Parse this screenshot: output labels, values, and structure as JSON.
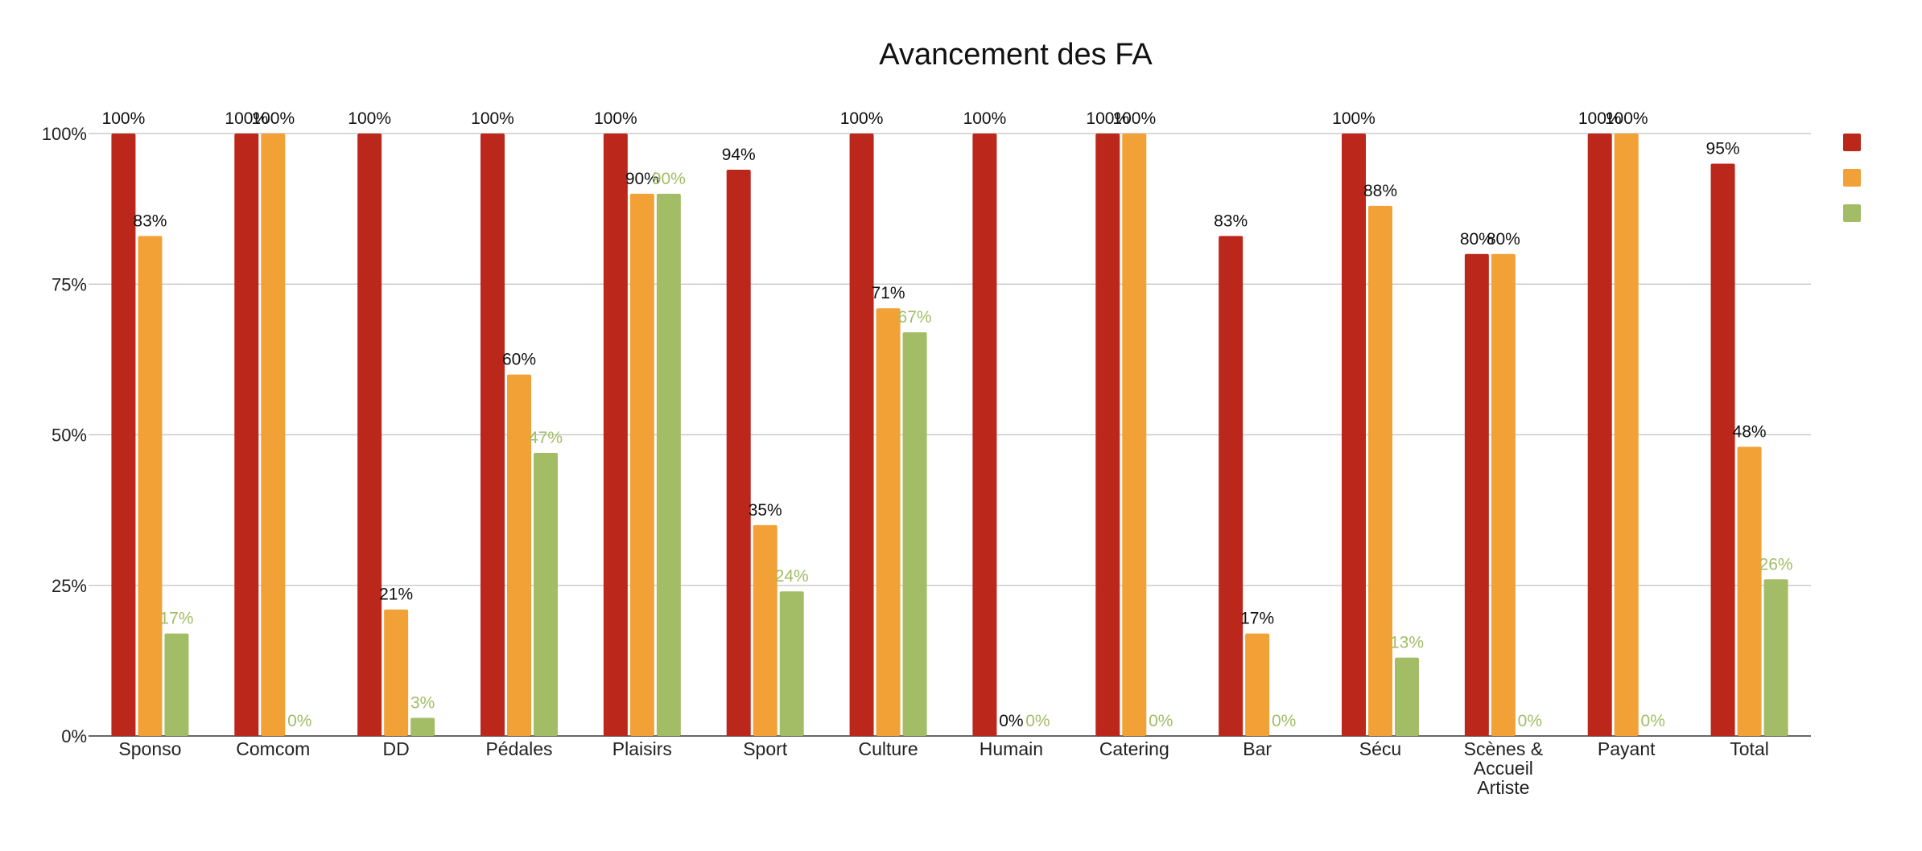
{
  "chart_data": {
    "type": "bar",
    "title": "Avancement des FA",
    "xlabel": "",
    "ylabel": "",
    "ylim": [
      0,
      100
    ],
    "yticks": [
      "0%",
      "25%",
      "50%",
      "75%",
      "100%"
    ],
    "grid": true,
    "legend_position": "right",
    "categories": [
      [
        "Sponso"
      ],
      [
        "Comcom"
      ],
      [
        "DD"
      ],
      [
        "Pédales"
      ],
      [
        "Plaisirs"
      ],
      [
        "Sport"
      ],
      [
        "Culture"
      ],
      [
        "Humain"
      ],
      [
        "Catering"
      ],
      [
        "Bar"
      ],
      [
        "Sécu"
      ],
      [
        "Scènes &",
        "Accueil",
        "Artiste"
      ],
      [
        "Payant"
      ],
      [
        "Total"
      ]
    ],
    "series": [
      {
        "color": "#bc271b",
        "label_color": "#111111",
        "values": [
          100,
          100,
          100,
          100,
          100,
          94,
          100,
          100,
          100,
          83,
          100,
          80,
          100,
          95
        ],
        "labels": [
          "100%",
          "100%",
          "100%",
          "100%",
          "100%",
          "94%",
          "100%",
          "100%",
          "100%",
          "83%",
          "100%",
          "80%",
          "100%",
          "95%"
        ]
      },
      {
        "color": "#f2a137",
        "label_color": "#111111",
        "values": [
          83,
          100,
          21,
          60,
          90,
          35,
          71,
          0,
          100,
          17,
          88,
          80,
          100,
          48
        ],
        "labels": [
          "83%",
          "100%",
          "21%",
          "60%",
          "90%",
          "35%",
          "71%",
          "0%",
          "100%",
          "17%",
          "88%",
          "80%",
          "100%",
          "48%"
        ]
      },
      {
        "color": "#a2bd66",
        "label_color": "#a2bd66",
        "values": [
          17,
          0,
          3,
          47,
          90,
          24,
          67,
          0,
          0,
          0,
          13,
          0,
          0,
          26
        ],
        "labels": [
          "17%",
          "0%",
          "3%",
          "47%",
          "90%",
          "24%",
          "67%",
          "0%",
          "0%",
          "0%",
          "13%",
          "0%",
          "0%",
          "26%"
        ]
      }
    ]
  }
}
